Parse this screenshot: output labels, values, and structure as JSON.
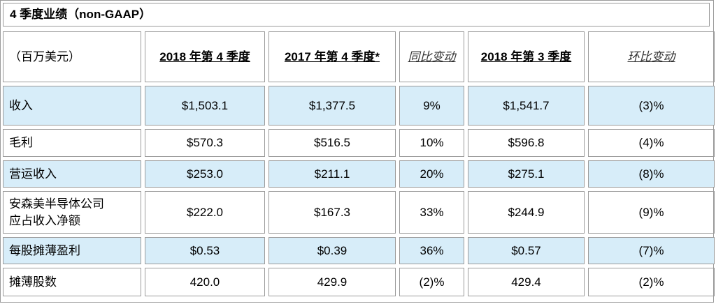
{
  "title": "4 季度业绩（non-GAAP）",
  "headers": {
    "unit": "（百万美元）",
    "q4_2018": "2018 年第 4 季度",
    "q4_2017": "2017 年第 4 季度*",
    "yoy": "同比变动",
    "q3_2018": "2018 年第 3 季度",
    "qoq": "环比变动"
  },
  "rows": [
    {
      "label": "收入",
      "q4_2018": "$1,503.1",
      "q4_2017": "$1,377.5",
      "yoy": "9%",
      "q3_2018": "$1,541.7",
      "qoq": "(3)%"
    },
    {
      "label": "毛利",
      "q4_2018": "$570.3",
      "q4_2017": "$516.5",
      "yoy": "10%",
      "q3_2018": "$596.8",
      "qoq": "(4)%"
    },
    {
      "label": "营运收入",
      "q4_2018": "$253.0",
      "q4_2017": "$211.1",
      "yoy": "20%",
      "q3_2018": "$275.1",
      "qoq": "(8)%"
    },
    {
      "label_line1": "安森美半导体公司",
      "label_line2": "应占收入净额",
      "q4_2018": "$222.0",
      "q4_2017": "$167.3",
      "yoy": "33%",
      "q3_2018": "$244.9",
      "qoq": "(9)%"
    },
    {
      "label": "每股摊薄盈利",
      "q4_2018": "$0.53",
      "q4_2017": "$0.39",
      "yoy": "36%",
      "q3_2018": "$0.57",
      "qoq": "(7)%"
    },
    {
      "label": "摊薄股数",
      "q4_2018": "420.0",
      "q4_2017": "429.9",
      "yoy": "(2)%",
      "q3_2018": "429.4",
      "qoq": "(2)%"
    }
  ],
  "colors": {
    "shade": "#d7edf9",
    "border": "#9a9a9a"
  }
}
